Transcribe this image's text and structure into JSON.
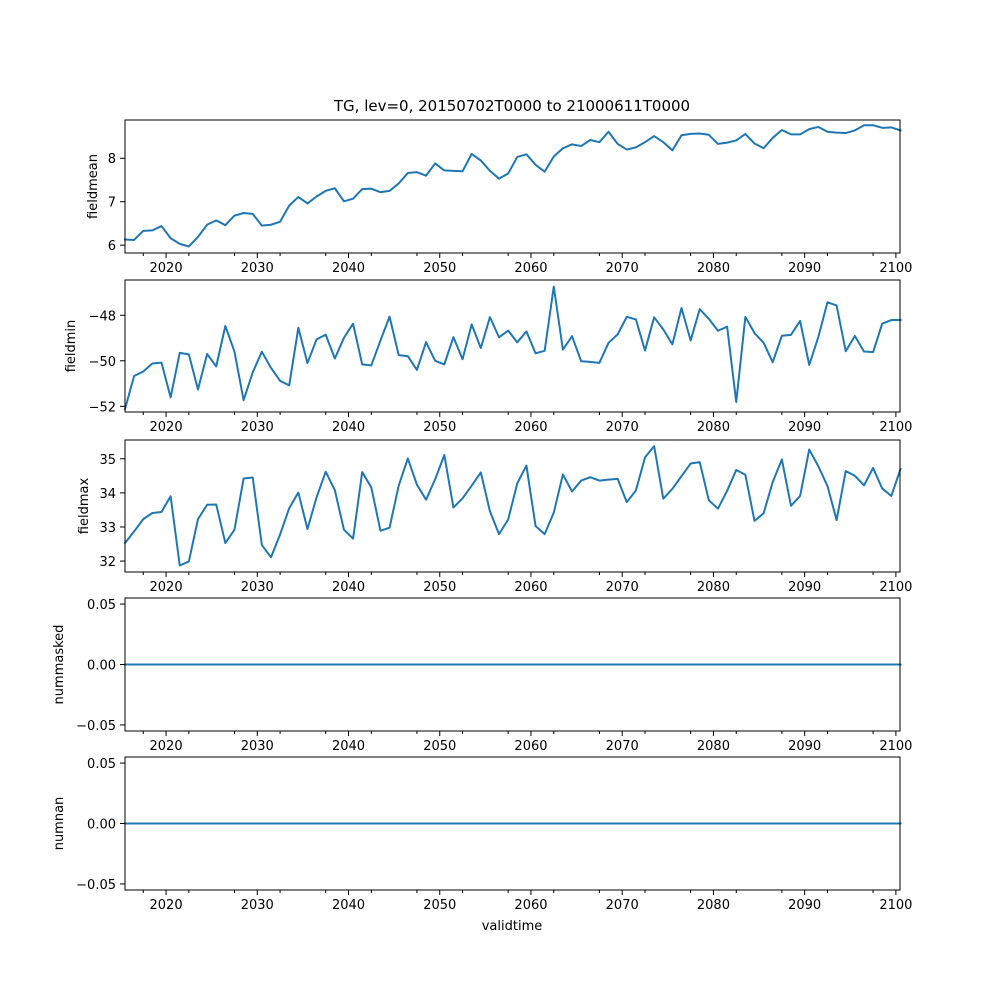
{
  "title": "TG, lev=0, 20150702T0000 to 21000611T0000",
  "xlabel": "validtime",
  "colors": {
    "line": "#1f77b4",
    "axes": "#000000",
    "background": "#ffffff"
  },
  "chart_data": [
    {
      "type": "line",
      "ylabel": "fieldmean",
      "xlim": [
        2015.5,
        2100.45
      ],
      "ylim": [
        5.82,
        8.88
      ],
      "xticks": [
        2020,
        2030,
        2040,
        2050,
        2060,
        2070,
        2080,
        2090,
        2100
      ],
      "xticklabels": [
        "2020",
        "2030",
        "2040",
        "2050",
        "2060",
        "2070",
        "2080",
        "2090",
        "2100"
      ],
      "yticks": [
        6,
        7,
        8
      ],
      "yticklabels": [
        "6",
        "7",
        "8"
      ],
      "x_start": 2015.5,
      "x_step": 1,
      "values": [
        6.13,
        6.12,
        6.33,
        6.34,
        6.44,
        6.16,
        6.03,
        5.97,
        6.19,
        6.47,
        6.57,
        6.46,
        6.68,
        6.74,
        6.72,
        6.45,
        6.47,
        6.54,
        6.91,
        7.11,
        6.96,
        7.12,
        7.25,
        7.31,
        7.01,
        7.07,
        7.29,
        7.3,
        7.22,
        7.25,
        7.42,
        7.66,
        7.68,
        7.6,
        7.88,
        7.72,
        7.71,
        7.7,
        8.1,
        7.95,
        7.71,
        7.53,
        7.65,
        8.03,
        8.09,
        7.85,
        7.69,
        8.04,
        8.23,
        8.32,
        8.28,
        8.42,
        8.37,
        8.61,
        8.33,
        8.2,
        8.25,
        8.37,
        8.51,
        8.37,
        8.18,
        8.53,
        8.56,
        8.57,
        8.54,
        8.33,
        8.36,
        8.41,
        8.56,
        8.34,
        8.23,
        8.47,
        8.65,
        8.55,
        8.55,
        8.67,
        8.72,
        8.61,
        8.59,
        8.58,
        8.64,
        8.76,
        8.76,
        8.7,
        8.71,
        8.64
      ]
    },
    {
      "type": "line",
      "ylabel": "fieldmin",
      "xlim": [
        2015.5,
        2100.45
      ],
      "ylim": [
        -52.25,
        -46.45
      ],
      "xticks": [
        2020,
        2030,
        2040,
        2050,
        2060,
        2070,
        2080,
        2090,
        2100
      ],
      "xticklabels": [
        "2020",
        "2030",
        "2040",
        "2050",
        "2060",
        "2070",
        "2080",
        "2090",
        "2100"
      ],
      "yticks": [
        -52,
        -50,
        -48
      ],
      "yticklabels": [
        "−52",
        "−50",
        "−48"
      ],
      "x_start": 2015.5,
      "x_step": 1,
      "values": [
        -52.12,
        -50.67,
        -50.47,
        -50.12,
        -50.08,
        -51.61,
        -49.65,
        -49.72,
        -51.26,
        -49.7,
        -50.25,
        -48.47,
        -49.6,
        -51.73,
        -50.51,
        -49.6,
        -50.31,
        -50.88,
        -51.08,
        -48.55,
        -50.1,
        -49.06,
        -48.85,
        -49.9,
        -48.99,
        -48.37,
        -50.16,
        -50.2,
        -49.11,
        -48.06,
        -49.75,
        -49.8,
        -50.4,
        -49.18,
        -50.0,
        -50.16,
        -48.96,
        -49.93,
        -48.4,
        -49.44,
        -48.08,
        -48.97,
        -48.67,
        -49.19,
        -48.71,
        -49.67,
        -49.56,
        -46.74,
        -49.51,
        -48.92,
        -50.02,
        -50.05,
        -50.09,
        -49.21,
        -48.84,
        -48.07,
        -48.18,
        -49.55,
        -48.09,
        -48.62,
        -49.28,
        -47.68,
        -49.11,
        -47.73,
        -48.16,
        -48.68,
        -48.5,
        -51.81,
        -48.07,
        -48.78,
        -49.21,
        -50.06,
        -48.9,
        -48.86,
        -48.25,
        -50.18,
        -48.95,
        -47.43,
        -47.57,
        -49.58,
        -48.91,
        -49.59,
        -49.62,
        -48.37,
        -48.21,
        -48.21
      ]
    },
    {
      "type": "line",
      "ylabel": "fieldmax",
      "xlim": [
        2015.5,
        2100.45
      ],
      "ylim": [
        31.68,
        35.55
      ],
      "xticks": [
        2020,
        2030,
        2040,
        2050,
        2060,
        2070,
        2080,
        2090,
        2100
      ],
      "xticklabels": [
        "2020",
        "2030",
        "2040",
        "2050",
        "2060",
        "2070",
        "2080",
        "2090",
        "2100"
      ],
      "yticks": [
        32,
        33,
        34,
        35
      ],
      "yticklabels": [
        "32",
        "33",
        "34",
        "35"
      ],
      "x_start": 2015.5,
      "x_step": 1,
      "values": [
        32.53,
        32.87,
        33.23,
        33.41,
        33.44,
        33.9,
        31.87,
        31.99,
        33.23,
        33.65,
        33.66,
        32.53,
        32.92,
        34.42,
        34.45,
        32.47,
        32.11,
        32.78,
        33.55,
        34.01,
        32.94,
        33.87,
        34.62,
        34.08,
        32.92,
        32.66,
        34.61,
        34.16,
        32.89,
        32.98,
        34.21,
        35.01,
        34.24,
        33.8,
        34.4,
        35.11,
        33.57,
        33.84,
        34.21,
        34.6,
        33.46,
        32.79,
        33.22,
        34.28,
        34.8,
        33.03,
        32.79,
        33.42,
        34.54,
        34.04,
        34.36,
        34.46,
        34.36,
        34.39,
        34.41,
        33.73,
        34.07,
        35.04,
        35.37,
        33.83,
        34.12,
        34.49,
        34.86,
        34.9,
        33.78,
        33.54,
        34.06,
        34.67,
        34.53,
        33.18,
        33.4,
        34.32,
        34.98,
        33.62,
        33.91,
        35.27,
        34.78,
        34.2,
        33.2,
        34.64,
        34.5,
        34.22,
        34.73,
        34.13,
        33.91,
        34.7
      ]
    },
    {
      "type": "line",
      "ylabel": "nummasked",
      "xlim": [
        2015.5,
        2100.45
      ],
      "ylim": [
        -0.055,
        0.055
      ],
      "xticks": [
        2020,
        2030,
        2040,
        2050,
        2060,
        2070,
        2080,
        2090,
        2100
      ],
      "xticklabels": [
        "2020",
        "2030",
        "2040",
        "2050",
        "2060",
        "2070",
        "2080",
        "2090",
        "2100"
      ],
      "yticks": [
        -0.05,
        0.0,
        0.05
      ],
      "yticklabels": [
        "−0.05",
        "0.00",
        "0.05"
      ],
      "x_start": 2015.5,
      "x_step": 1,
      "values": [
        0,
        0,
        0,
        0,
        0,
        0,
        0,
        0,
        0,
        0,
        0,
        0,
        0,
        0,
        0,
        0,
        0,
        0,
        0,
        0,
        0,
        0,
        0,
        0,
        0,
        0,
        0,
        0,
        0,
        0,
        0,
        0,
        0,
        0,
        0,
        0,
        0,
        0,
        0,
        0,
        0,
        0,
        0,
        0,
        0,
        0,
        0,
        0,
        0,
        0,
        0,
        0,
        0,
        0,
        0,
        0,
        0,
        0,
        0,
        0,
        0,
        0,
        0,
        0,
        0,
        0,
        0,
        0,
        0,
        0,
        0,
        0,
        0,
        0,
        0,
        0,
        0,
        0,
        0,
        0,
        0,
        0,
        0,
        0,
        0,
        0
      ]
    },
    {
      "type": "line",
      "ylabel": "numnan",
      "xlim": [
        2015.5,
        2100.45
      ],
      "ylim": [
        -0.055,
        0.055
      ],
      "xticks": [
        2020,
        2030,
        2040,
        2050,
        2060,
        2070,
        2080,
        2090,
        2100
      ],
      "xticklabels": [
        "2020",
        "2030",
        "2040",
        "2050",
        "2060",
        "2070",
        "2080",
        "2090",
        "2100"
      ],
      "yticks": [
        -0.05,
        0.0,
        0.05
      ],
      "yticklabels": [
        "−0.05",
        "0.00",
        "0.05"
      ],
      "x_start": 2015.5,
      "x_step": 1,
      "values": [
        0,
        0,
        0,
        0,
        0,
        0,
        0,
        0,
        0,
        0,
        0,
        0,
        0,
        0,
        0,
        0,
        0,
        0,
        0,
        0,
        0,
        0,
        0,
        0,
        0,
        0,
        0,
        0,
        0,
        0,
        0,
        0,
        0,
        0,
        0,
        0,
        0,
        0,
        0,
        0,
        0,
        0,
        0,
        0,
        0,
        0,
        0,
        0,
        0,
        0,
        0,
        0,
        0,
        0,
        0,
        0,
        0,
        0,
        0,
        0,
        0,
        0,
        0,
        0,
        0,
        0,
        0,
        0,
        0,
        0,
        0,
        0,
        0,
        0,
        0,
        0,
        0,
        0,
        0,
        0,
        0,
        0,
        0,
        0,
        0,
        0
      ]
    }
  ]
}
